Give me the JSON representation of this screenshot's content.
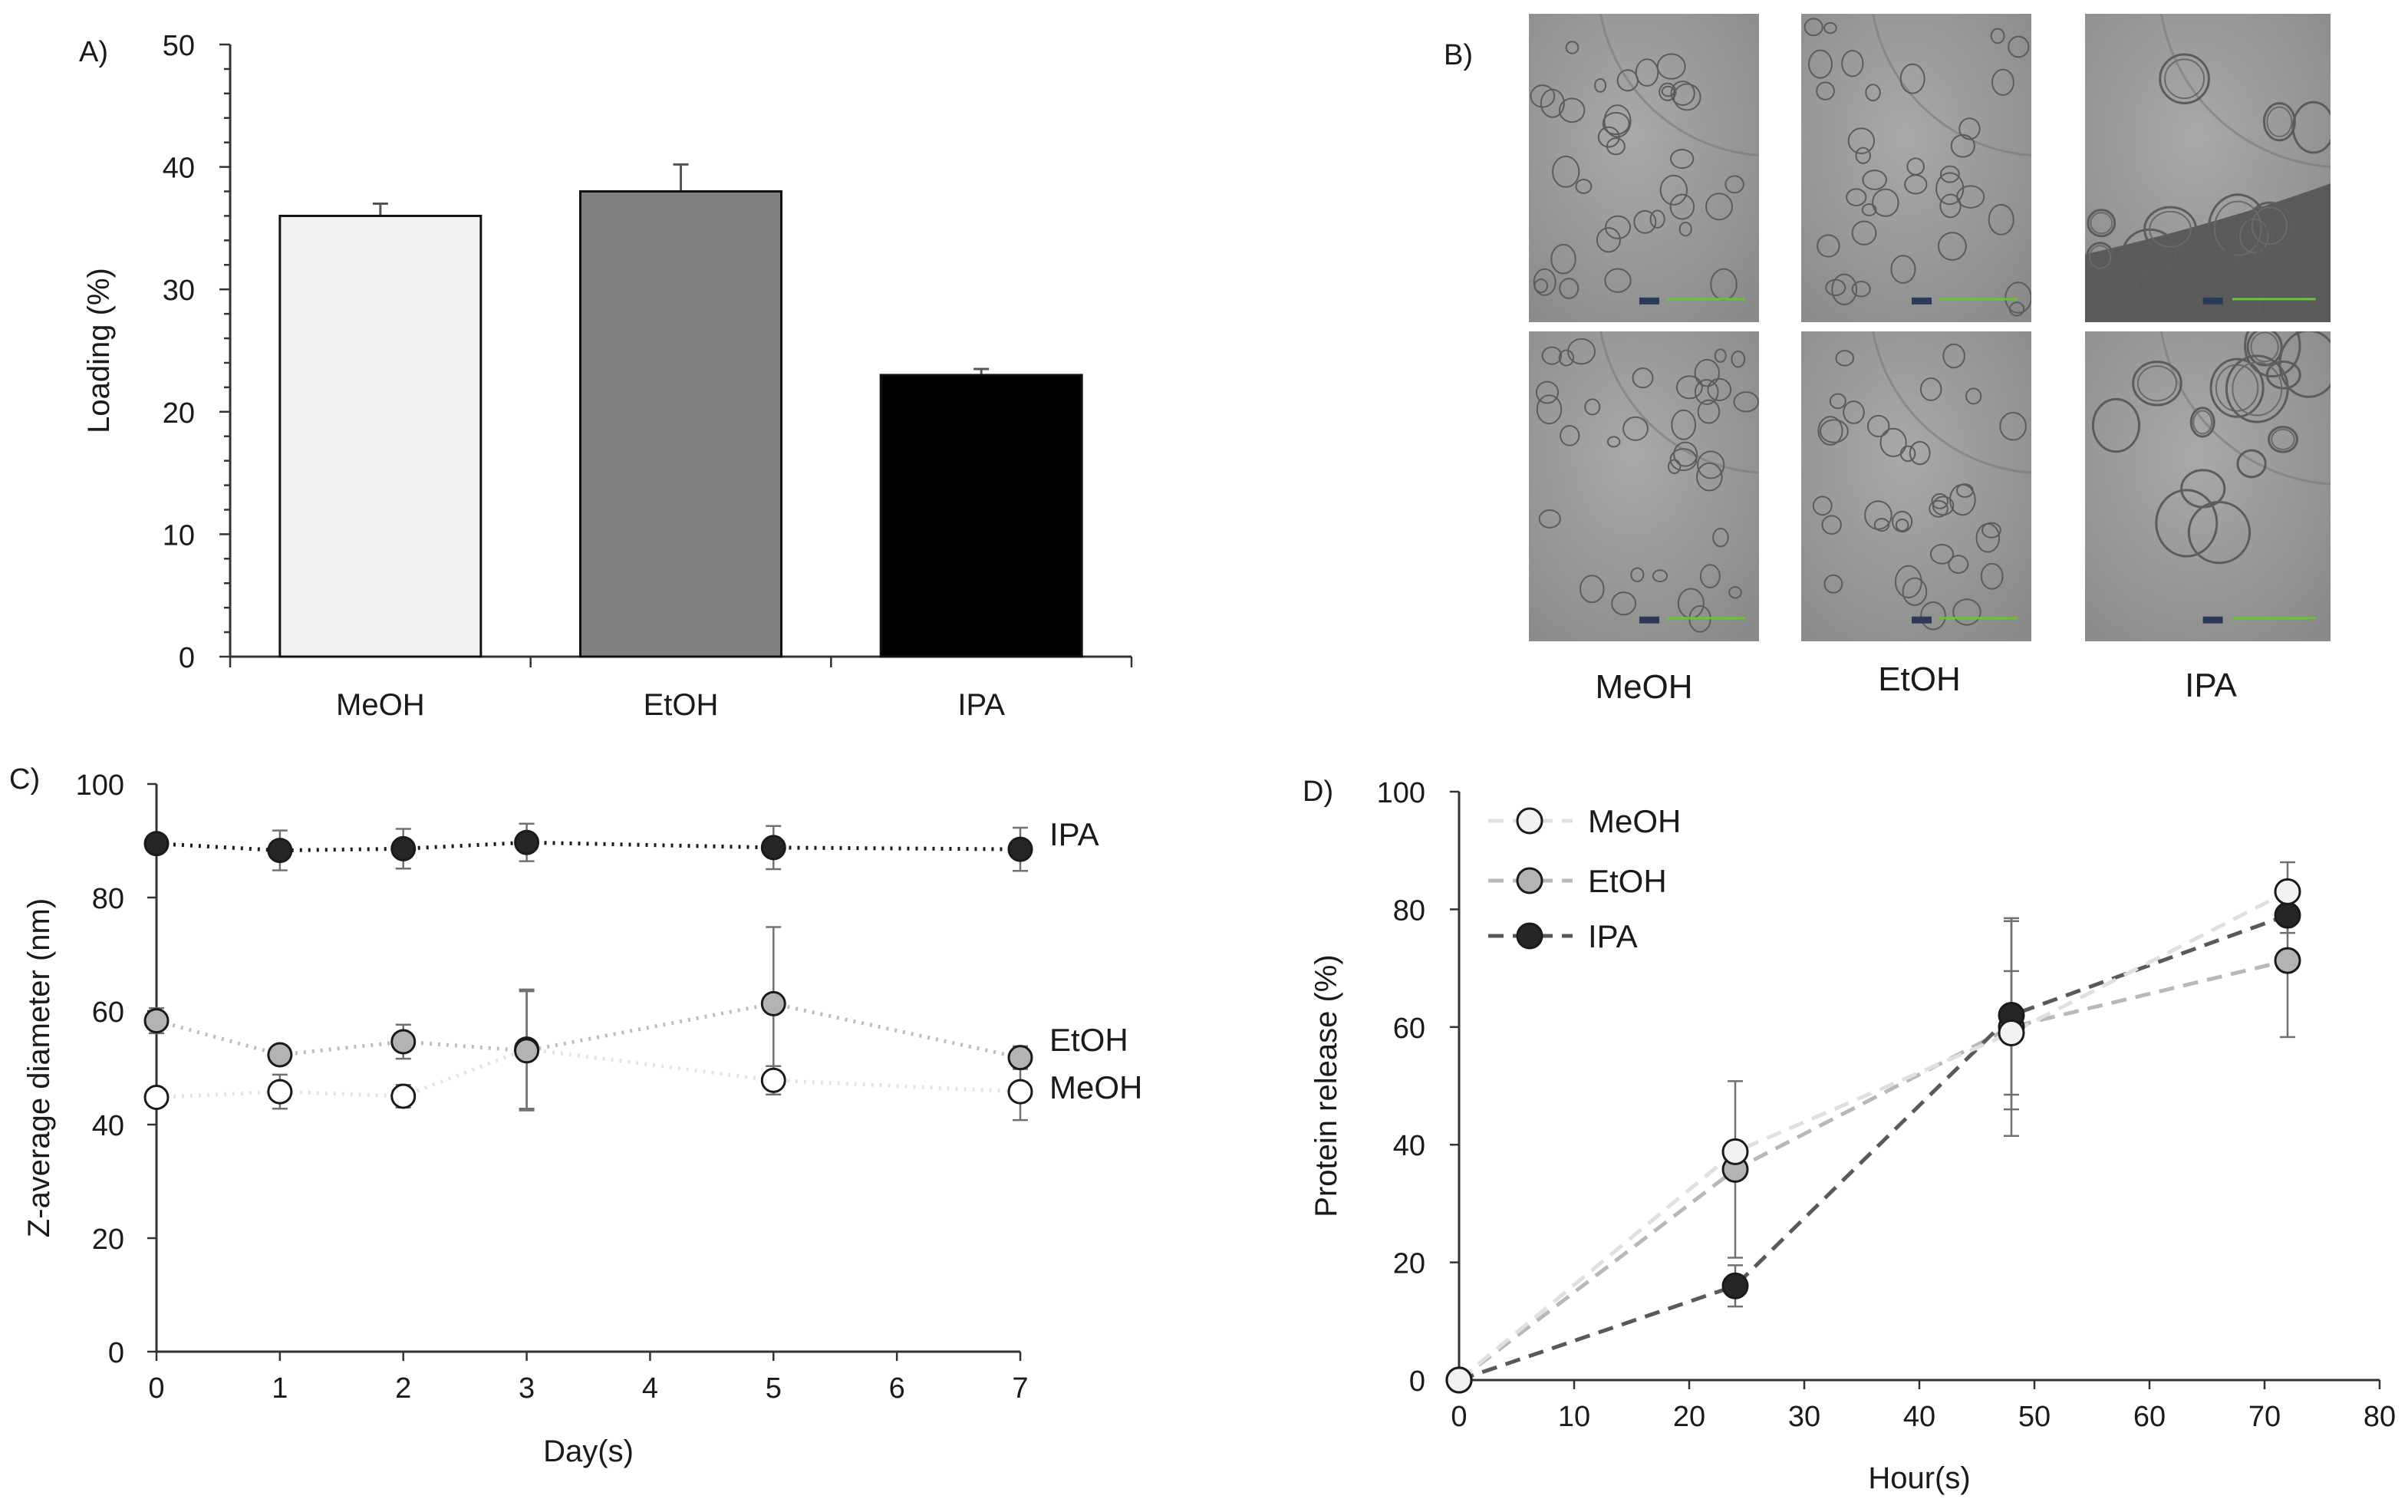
{
  "panels": {
    "a_label": "A)",
    "b_label": "B)",
    "c_label": "C)",
    "d_label": "D)"
  },
  "micrographs": {
    "columns": [
      "MeOH",
      "EtOH",
      "IPA"
    ]
  },
  "chart_data": [
    {
      "type": "bar",
      "panel": "A)",
      "categories": [
        "MeOH",
        "EtOH",
        "IPA"
      ],
      "values": [
        36,
        38,
        23
      ],
      "errors": [
        1,
        2.2,
        0.5
      ],
      "colors": [
        "#f2f2f2",
        "#808080",
        "#000000"
      ],
      "ylabel": "Loading (%)",
      "xlabel": "",
      "ylim": [
        0,
        50
      ],
      "yticks": [
        0,
        10,
        20,
        30,
        40,
        50
      ],
      "grid": false
    },
    {
      "type": "line",
      "panel": "C)",
      "x": [
        0,
        1,
        2,
        3,
        5,
        7
      ],
      "series": [
        {
          "name": "IPA",
          "values": [
            89.5,
            88.3,
            88.6,
            89.7,
            88.8,
            88.5
          ],
          "errors": [
            1.5,
            3.5,
            3.5,
            3.3,
            3.8,
            3.8
          ],
          "fill": "#262626",
          "line": "#1a1a1a"
        },
        {
          "name": "EtOH",
          "values": [
            58.3,
            52.3,
            54.6,
            53.0,
            61.3,
            51.8
          ],
          "errors": [
            2.2,
            1.5,
            3.0,
            10.5,
            13.5,
            2.0
          ],
          "fill": "#b3b3b3",
          "line": "#bdbdbd"
        },
        {
          "name": "MeOH",
          "values": [
            44.8,
            45.8,
            45.0,
            53.3,
            47.8,
            45.8
          ],
          "errors": [
            1.5,
            3.0,
            2.0,
            10.5,
            2.5,
            5.0
          ],
          "fill": "#ffffff",
          "line": "#e3e3e3"
        }
      ],
      "xlabel": "Day(s)",
      "ylabel": "Z-average diameter (nm)",
      "xlim": [
        0,
        7
      ],
      "ylim": [
        0,
        100
      ],
      "xticks": [
        0,
        1,
        2,
        3,
        4,
        5,
        6,
        7
      ],
      "yticks": [
        0,
        20,
        40,
        60,
        80,
        100
      ],
      "grid": false,
      "legend": "right, at line ends"
    },
    {
      "type": "line",
      "panel": "D)",
      "x": [
        0,
        24,
        48,
        72
      ],
      "series": [
        {
          "name": "MeOH",
          "values": [
            0,
            38.8,
            59.0,
            83.0
          ],
          "errors": [
            0,
            0,
            10.5,
            5.0
          ],
          "fill": "#f2f2f2",
          "line": "#e0e0e0"
        },
        {
          "name": "EtOH",
          "values": [
            0,
            35.8,
            60.0,
            71.3
          ],
          "errors": [
            0,
            15.0,
            18.5,
            13.0
          ],
          "fill": "#b3b3b3",
          "line": "#b8b8b8"
        },
        {
          "name": "IPA",
          "values": [
            0,
            16.0,
            62.0,
            79.0
          ],
          "errors": [
            0,
            3.5,
            16.0,
            3.0
          ],
          "fill": "#262626",
          "line": "#595959"
        }
      ],
      "xlabel": "Hour(s)",
      "ylabel": "Protein release (%)",
      "xlim": [
        0,
        80
      ],
      "ylim": [
        0,
        100
      ],
      "xticks": [
        0,
        10,
        20,
        30,
        40,
        50,
        60,
        70,
        80
      ],
      "yticks": [
        0,
        20,
        40,
        60,
        80,
        100
      ],
      "grid": false,
      "legend": "top-left"
    }
  ]
}
